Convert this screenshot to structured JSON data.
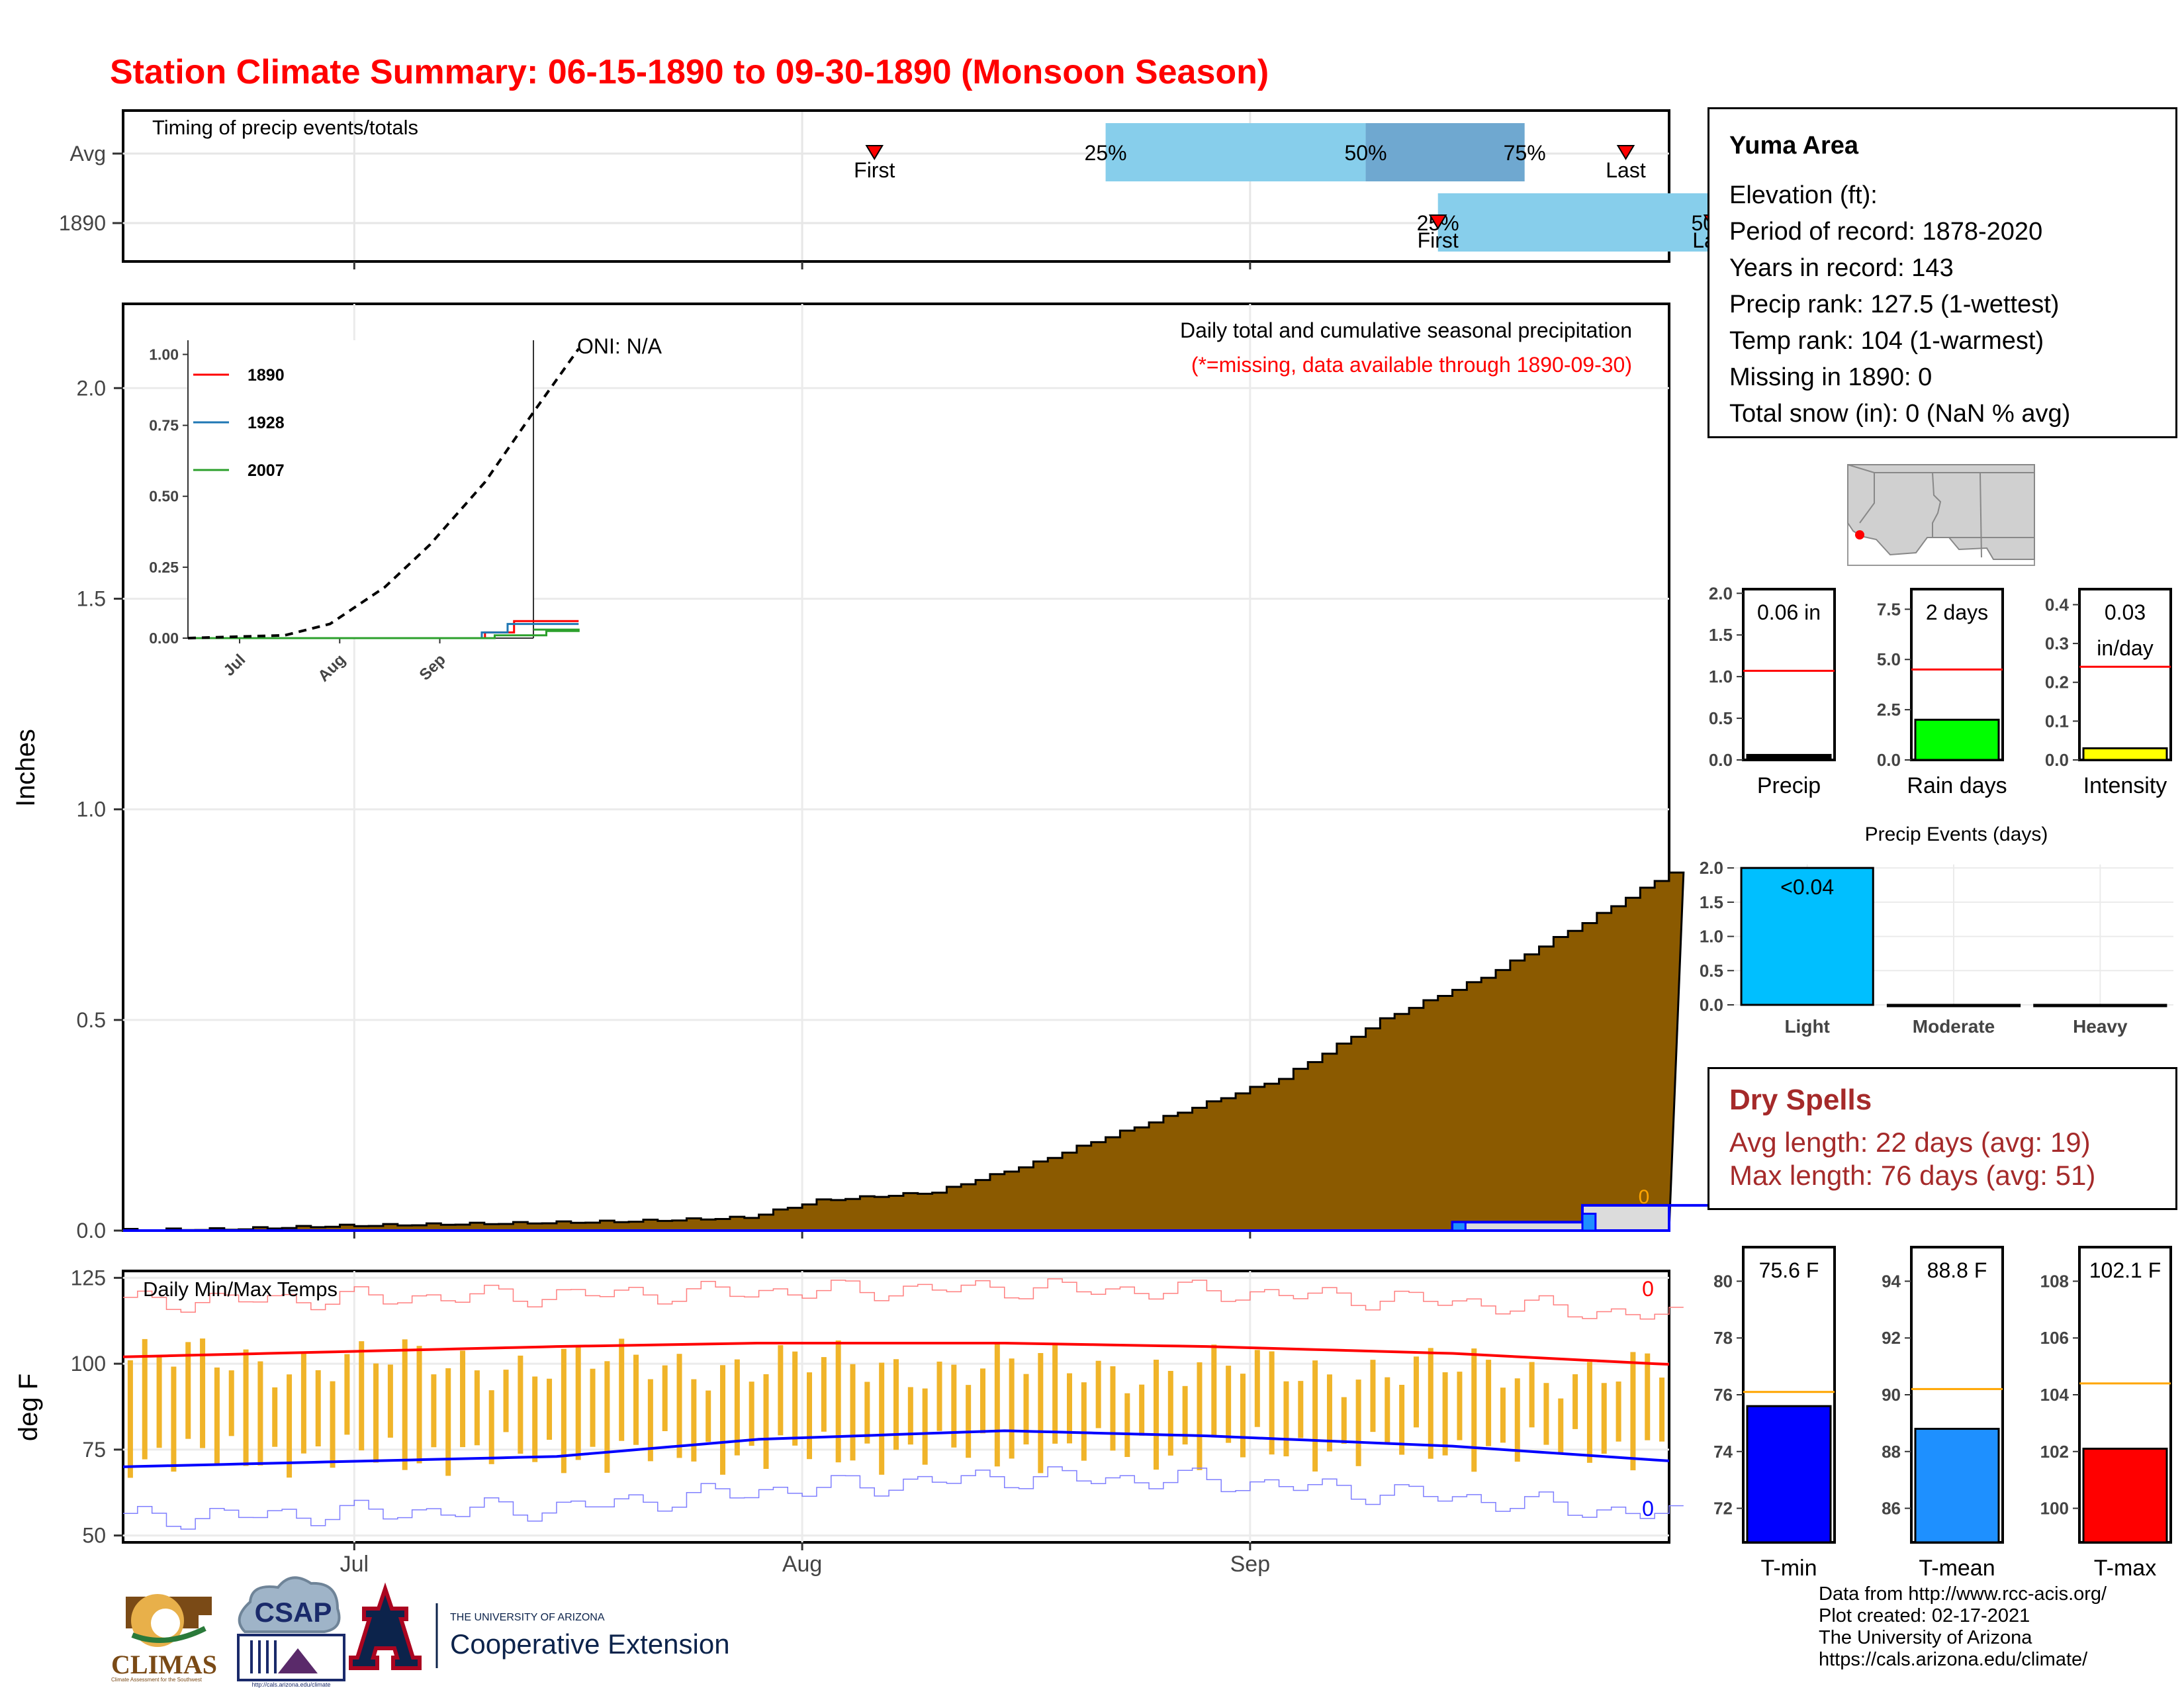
{
  "title": "Station Climate Summary: 06-15-1890 to 09-30-1890 (Monsoon Season)",
  "colors": {
    "title": "#ff0000",
    "precip_fill": "#8b5a00",
    "avg_outline": "#0000ff",
    "avg_fill": "#dcdcdc",
    "timing_light": "#87ceeb",
    "timing_dark": "#6fa8d0",
    "marker": "#ff0000",
    "tmax_avg": "#ff0000",
    "tmin_avg": "#0000ff",
    "range_bar": "#f0b429",
    "rain_days_fill": "#00ff00",
    "intensity_fill": "#ffff00",
    "events_fill": "#00bfff",
    "tmin_fill": "#0000ff",
    "tmean_fill": "#1e90ff",
    "tmax_fill": "#ff0000",
    "ref_orange": "#ffa500",
    "dry_spell_text": "#a52a2a"
  },
  "timing": {
    "title": "Timing of precip events/totals",
    "rows": [
      "Avg",
      "1890"
    ],
    "avg": {
      "first": "Jul 23",
      "last": "Sep 13",
      "q25": "Aug 08",
      "q50": "Aug 26",
      "q75": "Sep 06",
      "labels": {
        "first": "First",
        "last": "Last",
        "q25": "25%",
        "q50": "50%",
        "q75": "75%"
      }
    },
    "y1890": {
      "first": "Aug 31",
      "last": "Sep 19",
      "q25": "Aug 31",
      "q50": "Sep 19",
      "labels": {
        "first": "First",
        "last": "Last",
        "q25": "25%",
        "q50": "50%"
      }
    }
  },
  "precip_panel": {
    "title": "Daily total and cumulative seasonal precipitation",
    "subtitle": "(*=missing, data available through 1890-09-30)",
    "oni": "ONI: N/A",
    "ylabel": "Inches",
    "yticks": [
      "0.0",
      "0.5",
      "1.0",
      "1.5",
      "2.0"
    ],
    "zero_label": "0"
  },
  "chart_data": [
    {
      "type": "area",
      "title": "Daily total and cumulative seasonal precipitation",
      "ylabel": "Inches",
      "ylim": [
        0,
        2.2
      ],
      "xlim": [
        "1890-06-15",
        "1890-09-30"
      ],
      "x_ticks": [
        "Jul",
        "Aug",
        "Sep"
      ],
      "series": [
        {
          "name": "Average cumulative precipitation",
          "x": [
            "06-15",
            "06-22",
            "06-30",
            "07-05",
            "07-10",
            "07-14",
            "07-19",
            "07-27",
            "08-03",
            "08-07",
            "08-13",
            "08-20",
            "08-27",
            "09-03",
            "09-10",
            "09-16",
            "09-22",
            "09-26",
            "09-30"
          ],
          "values": [
            0.0,
            0.002,
            0.01,
            0.02,
            0.025,
            0.03,
            0.07,
            0.09,
            0.16,
            0.21,
            0.28,
            0.36,
            0.5,
            0.6,
            0.73,
            0.85,
            0.88,
            0.96,
            1.05
          ]
        },
        {
          "name": "1890 cumulative precipitation",
          "x": [
            "06-15",
            "08-31",
            "09-01",
            "09-09",
            "09-10",
            "09-30"
          ],
          "values": [
            0.0,
            0.0,
            0.02,
            0.02,
            0.06,
            0.06
          ]
        }
      ]
    },
    {
      "type": "line",
      "x_ticks": [
        "Jul",
        "Aug",
        "Sep"
      ],
      "yticks": [
        "0.00",
        "0.25",
        "0.50",
        "0.75",
        "1.00"
      ],
      "ylim": [
        0,
        1.05
      ],
      "legend": "top-left",
      "series": [
        {
          "name": "1890",
          "color": "#ff0000",
          "x": [
            "06-15",
            "09-01",
            "09-10",
            "09-30"
          ],
          "values": [
            0,
            0.02,
            0.06,
            0.06
          ]
        },
        {
          "name": "1928",
          "color": "#1f77b4",
          "x": [
            "06-15",
            "08-31",
            "09-08",
            "09-30"
          ],
          "values": [
            0,
            0.02,
            0.05,
            0.05
          ]
        },
        {
          "name": "2007",
          "color": "#2ca02c",
          "x": [
            "06-15",
            "09-04",
            "09-20",
            "09-30"
          ],
          "values": [
            0,
            0.01,
            0.025,
            0.03
          ]
        },
        {
          "name": "Average",
          "style": "dashed",
          "x": [
            "06-15",
            "07-01",
            "07-15",
            "08-01",
            "08-15",
            "09-01",
            "09-15",
            "09-30"
          ],
          "values": [
            0,
            0.01,
            0.05,
            0.18,
            0.33,
            0.55,
            0.78,
            1.02
          ]
        }
      ]
    },
    {
      "type": "bar",
      "title": "Daily Min/Max Temps",
      "ylabel": "deg F",
      "ylim": [
        48,
        127
      ],
      "yticks": [
        "50",
        "75",
        "100",
        "125"
      ],
      "x_ticks": [
        "Jul",
        "Aug",
        "Sep"
      ],
      "series": [
        {
          "name": "Avg max",
          "x": [
            "06-15",
            "07-01",
            "07-15",
            "08-01",
            "08-15",
            "09-01",
            "09-15",
            "09-30"
          ],
          "values": [
            102,
            105,
            106,
            106,
            105,
            103,
            100,
            97.5
          ]
        },
        {
          "name": "Avg min",
          "x": [
            "06-15",
            "07-01",
            "07-15",
            "08-01",
            "08-15",
            "09-01",
            "09-15",
            "09-30"
          ],
          "values": [
            70,
            73,
            78,
            80.5,
            79,
            76,
            72,
            68
          ]
        },
        {
          "name": "Record max",
          "x": [
            "06-15",
            "07-01",
            "07-15",
            "08-01",
            "08-15",
            "09-01",
            "09-15",
            "09-30"
          ],
          "values": [
            118,
            120,
            121,
            122,
            121,
            118,
            114,
            110
          ]
        },
        {
          "name": "Record min",
          "x": [
            "06-15",
            "07-01",
            "07-15",
            "08-01",
            "08-15",
            "09-01",
            "09-15",
            "09-30"
          ],
          "values": [
            55,
            58,
            63,
            67,
            66,
            61,
            56,
            52
          ]
        },
        {
          "name": "Daily range top",
          "x": [
            "06-15",
            "09-30"
          ],
          "values": [
            101,
            97
          ]
        },
        {
          "name": "Daily range bottom",
          "x": [
            "06-15",
            "09-30"
          ],
          "values": [
            73,
            76
          ]
        }
      ],
      "zero_label_top": "0",
      "zero_label_bottom": "0"
    },
    {
      "type": "bar",
      "categories": [
        "Precip"
      ],
      "values": [
        0.06
      ],
      "reference": 1.07,
      "label": "0.06 in",
      "yticks": [
        "0.0",
        "0.5",
        "1.0",
        "1.5",
        "2.0"
      ],
      "ylim": [
        0,
        2.05
      ]
    },
    {
      "type": "bar",
      "categories": [
        "Rain days"
      ],
      "values": [
        2
      ],
      "reference": 4.5,
      "label": "2 days",
      "yticks": [
        "0.0",
        "2.5",
        "5.0",
        "7.5"
      ],
      "ylim": [
        0,
        8.5
      ]
    },
    {
      "type": "bar",
      "categories": [
        "Intensity"
      ],
      "values": [
        0.03
      ],
      "reference": 0.24,
      "label": "0.03 in/day",
      "yticks": [
        "0.0",
        "0.1",
        "0.2",
        "0.3",
        "0.4"
      ],
      "ylim": [
        0,
        0.44
      ]
    },
    {
      "type": "bar",
      "title": "Precip Events (days)",
      "categories": [
        "Light",
        "Moderate",
        "Heavy"
      ],
      "values": [
        2,
        0,
        0
      ],
      "label": "<0.04",
      "yticks": [
        "0.0",
        "0.5",
        "1.0",
        "1.5",
        "2.0"
      ],
      "ylim": [
        0,
        2.05
      ]
    },
    {
      "type": "bar",
      "categories": [
        "T-min"
      ],
      "values": [
        75.6
      ],
      "reference": 76.1,
      "label": "75.6 F",
      "yticks": [
        "72",
        "74",
        "76",
        "78",
        "80"
      ],
      "ylim": [
        70.8,
        81.2
      ]
    },
    {
      "type": "bar",
      "categories": [
        "T-mean"
      ],
      "values": [
        88.8
      ],
      "reference": 90.2,
      "label": "88.8 F",
      "yticks": [
        "86",
        "88",
        "90",
        "92",
        "94"
      ],
      "ylim": [
        84.8,
        95.2
      ]
    },
    {
      "type": "bar",
      "categories": [
        "T-max"
      ],
      "values": [
        102.1
      ],
      "reference": 104.4,
      "label": "102.1 F",
      "yticks": [
        "100",
        "102",
        "104",
        "106",
        "108"
      ],
      "ylim": [
        98.8,
        109.2
      ]
    }
  ],
  "station": {
    "name": "Yuma Area",
    "lines": [
      "Elevation (ft):",
      "Period of record: 1878-2020",
      "Years in record: 143",
      "Precip rank: 127.5 (1-wettest)",
      "Temp rank: 104 (1-warmest)",
      "Missing in 1890: 0",
      "Total snow (in): 0 (NaN % avg)"
    ]
  },
  "small_bars": {
    "precip": {
      "label": "0.06 in",
      "axis": "Precip"
    },
    "rain_days": {
      "label": "2 days",
      "axis": "Rain days"
    },
    "intensity": {
      "label1": "0.03",
      "label2": "in/day",
      "axis": "Intensity"
    }
  },
  "events": {
    "title": "Precip Events (days)",
    "label": "<0.04",
    "categories": [
      "Light",
      "Moderate",
      "Heavy"
    ]
  },
  "dry_spells": {
    "title": "Dry Spells",
    "avg": "Avg length: 22 days (avg: 19)",
    "max": "Max length: 76 days (avg: 51)"
  },
  "temps": {
    "tmin": {
      "label": "75.6 F",
      "axis": "T-min"
    },
    "tmean": {
      "label": "88.8 F",
      "axis": "T-mean"
    },
    "tmax": {
      "label": "102.1 F",
      "axis": "T-max"
    },
    "title": "Daily Min/Max Temps"
  },
  "credits": [
    "Data from http://www.rcc-acis.org/",
    "Plot created: 02-17-2021",
    "The University of Arizona",
    "https://cals.arizona.edu/climate/"
  ],
  "logos": {
    "climas": "CLIMAS",
    "climas_sub": "Climate Assessment for the Southwest",
    "csap": "CSAP",
    "csap_url": "http://cals.arizona.edu/climate",
    "ua_small": "THE UNIVERSITY OF ARIZONA",
    "ua_big": "Cooperative Extension"
  }
}
